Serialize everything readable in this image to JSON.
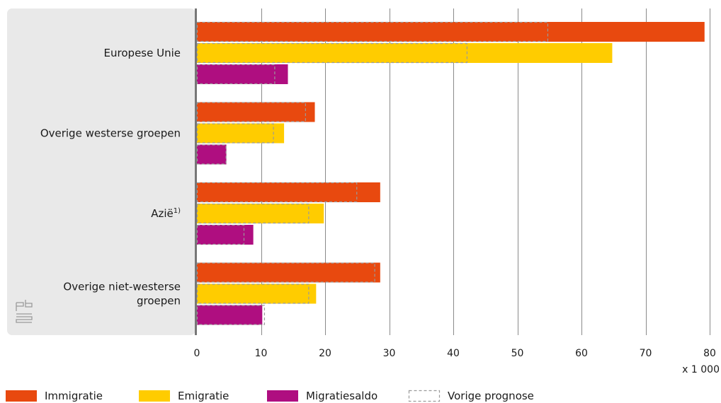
{
  "chart_data": {
    "type": "bar",
    "orientation": "horizontal",
    "categories": [
      "Europese Unie",
      "Overige westerse groepen",
      "Azië",
      "Overige niet-westerse groepen"
    ],
    "category_display": [
      {
        "lines": [
          "Europese Unie"
        ],
        "sup": ""
      },
      {
        "lines": [
          "Overige westerse groepen"
        ],
        "sup": ""
      },
      {
        "lines": [
          "Azië"
        ],
        "sup": "1)"
      },
      {
        "lines": [
          "Overige niet-westerse",
          "groepen"
        ],
        "sup": ""
      }
    ],
    "series": [
      {
        "name": "Immigratie",
        "color": "#e8490f",
        "values": [
          79.2,
          18.4,
          28.6,
          28.6
        ],
        "previous": [
          54.8,
          17.0,
          25.0,
          27.8
        ]
      },
      {
        "name": "Emigratie",
        "color": "#ffcc00",
        "values": [
          64.8,
          13.6,
          19.8,
          18.6
        ],
        "previous": [
          42.2,
          12.0,
          17.5,
          17.5
        ]
      },
      {
        "name": "Migratiesaldo",
        "color": "#af0e80",
        "values": [
          14.2,
          4.6,
          8.8,
          10.2
        ],
        "previous": [
          12.2,
          4.6,
          7.4,
          10.6
        ]
      }
    ],
    "previous_label": "Vorige prognose",
    "xlim": [
      0,
      80
    ],
    "xticks": [
      0,
      10,
      20,
      30,
      40,
      50,
      60,
      70,
      80
    ],
    "tick_labels": [
      "0",
      "10",
      "20",
      "30",
      "40",
      "50",
      "60",
      "70",
      "80"
    ],
    "xunit": "x 1 000",
    "grid": true,
    "legend_position": "bottom-left"
  },
  "logo": {
    "text": "cbs"
  }
}
